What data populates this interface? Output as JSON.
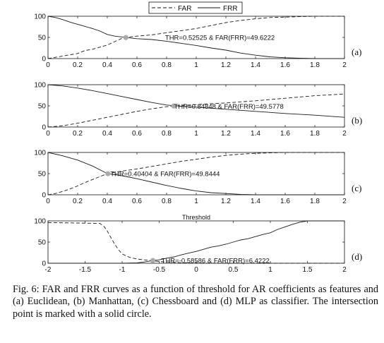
{
  "legend": {
    "far_label": "FAR",
    "frr_label": "FRR"
  },
  "colors": {
    "line": "#1a1a1a",
    "marker": "#aaaaaa",
    "background": "#ffffff"
  },
  "caption": "Fig. 6: FAR and FRR curves as a function of threshold for AR coefficients as features and (a) Euclidean, (b) Manhattan, (c) Chessboard and (d) MLP as classifier. The intersection point is marked with a solid circle.",
  "chart_data": [
    {
      "type": "line",
      "panel_label": "(a)",
      "xlabel": "",
      "xlim": [
        0,
        2
      ],
      "ylim": [
        0,
        100
      ],
      "xticks": [
        "0",
        "0.2",
        "0.4",
        "0.6",
        "0.8",
        "1",
        "1.2",
        "1.4",
        "1.6",
        "1.8",
        "2"
      ],
      "yticks": [
        "0",
        "50",
        "100"
      ],
      "annotation": "THR=0.52525  &  FAR(FRR)=49.6222",
      "intersection": {
        "x": 0.52525,
        "y": 49.6222
      },
      "series": [
        {
          "name": "FAR",
          "style": "dashed",
          "x": [
            0,
            0.05,
            0.1,
            0.15,
            0.2,
            0.25,
            0.3,
            0.35,
            0.4,
            0.45,
            0.5,
            0.55,
            0.6,
            0.7,
            0.8,
            0.9,
            1.0,
            1.1,
            1.2,
            1.3,
            1.4,
            1.5,
            1.6,
            1.7,
            1.8,
            2.0
          ],
          "y": [
            0,
            3,
            6,
            9,
            12,
            19,
            22,
            27,
            32,
            40,
            48,
            51,
            53,
            56,
            61,
            66,
            71,
            78,
            85,
            90,
            94,
            97,
            98,
            99,
            100,
            100
          ]
        },
        {
          "name": "FRR",
          "style": "solid",
          "x": [
            0,
            0.05,
            0.1,
            0.15,
            0.2,
            0.25,
            0.3,
            0.35,
            0.4,
            0.45,
            0.5,
            0.6,
            0.7,
            0.8,
            0.9,
            1.0,
            1.1,
            1.2,
            1.3,
            1.4,
            1.5,
            1.6,
            1.7,
            1.8,
            2.0
          ],
          "y": [
            100,
            97,
            92,
            86,
            81,
            76,
            71,
            65,
            57,
            53,
            51,
            47,
            45,
            41,
            36,
            31,
            25,
            20,
            13,
            8,
            4,
            2,
            1,
            0,
            0
          ]
        }
      ]
    },
    {
      "type": "line",
      "panel_label": "(b)",
      "xlabel": "",
      "xlim": [
        0,
        2
      ],
      "ylim": [
        0,
        100
      ],
      "xticks": [
        "0",
        "0.2",
        "0.4",
        "0.6",
        "0.8",
        "1",
        "1.2",
        "1.4",
        "1.6",
        "1.8",
        "2"
      ],
      "yticks": [
        "0",
        "50",
        "100"
      ],
      "annotation": "THR=0.84848  &  FAR(FRR)=49.5778",
      "intersection": {
        "x": 0.84848,
        "y": 49.5778
      },
      "series": [
        {
          "name": "FAR",
          "style": "dashed",
          "x": [
            0,
            0.1,
            0.2,
            0.3,
            0.4,
            0.5,
            0.6,
            0.7,
            0.8,
            0.9,
            1.0,
            1.2,
            1.4,
            1.6,
            1.8,
            2.0
          ],
          "y": [
            0,
            3,
            9,
            16,
            23,
            30,
            37,
            43,
            48,
            51,
            53,
            57,
            62,
            68,
            74,
            78
          ]
        },
        {
          "name": "FRR",
          "style": "solid",
          "x": [
            0,
            0.1,
            0.2,
            0.3,
            0.4,
            0.5,
            0.6,
            0.7,
            0.8,
            0.9,
            1.0,
            1.2,
            1.4,
            1.6,
            1.8,
            2.0
          ],
          "y": [
            100,
            97,
            92,
            86,
            79,
            72,
            65,
            58,
            52,
            49,
            47,
            42,
            37,
            32,
            28,
            23
          ]
        }
      ]
    },
    {
      "type": "line",
      "panel_label": "(c)",
      "xlabel": "",
      "xlim": [
        0,
        2
      ],
      "ylim": [
        0,
        100
      ],
      "xticks": [
        "0",
        "0.2",
        "0.4",
        "0.6",
        "0.8",
        "1",
        "1.2",
        "1.4",
        "1.6",
        "1.8",
        "2"
      ],
      "yticks": [
        "0",
        "50",
        "100"
      ],
      "annotation": "THR=0.40404  &  FAR(FRR)=49.8444",
      "intersection": {
        "x": 0.40404,
        "y": 49.8444
      },
      "series": [
        {
          "name": "FAR",
          "style": "dashed",
          "x": [
            0,
            0.05,
            0.1,
            0.15,
            0.2,
            0.25,
            0.3,
            0.35,
            0.4,
            0.45,
            0.5,
            0.6,
            0.7,
            0.8,
            0.9,
            1.0,
            1.1,
            1.2,
            1.3,
            1.4,
            1.5,
            1.6,
            1.7,
            1.8,
            2.0
          ],
          "y": [
            0,
            3,
            8,
            14,
            21,
            29,
            36,
            43,
            50,
            53,
            56,
            61,
            67,
            73,
            79,
            84,
            89,
            93,
            96,
            98,
            99,
            100,
            100,
            100,
            100
          ]
        },
        {
          "name": "FRR",
          "style": "solid",
          "x": [
            0,
            0.1,
            0.2,
            0.3,
            0.4,
            0.5,
            0.6,
            0.7,
            0.8,
            0.9,
            1.0,
            1.1,
            1.2,
            1.3,
            1.4,
            2.0
          ],
          "y": [
            100,
            92,
            82,
            68,
            50,
            45,
            38,
            30,
            22,
            15,
            9,
            5,
            3,
            1,
            0,
            0
          ]
        }
      ]
    },
    {
      "type": "line",
      "panel_label": "(d)",
      "xlabel": "Threshold",
      "xlim": [
        -2,
        2
      ],
      "ylim": [
        0,
        100
      ],
      "xticks": [
        "-2",
        "-1.5",
        "-1",
        "-0.5",
        "0",
        "0.5",
        "1",
        "1.5",
        "2"
      ],
      "yticks": [
        "0",
        "50",
        "100"
      ],
      "annotation": "THR=-0.58586  &  FAR(FRR)=6.4222",
      "intersection": {
        "x": -0.58586,
        "y": 6.4222
      },
      "series": [
        {
          "name": "FAR",
          "style": "dashed",
          "x": [
            -2.0,
            -1.6,
            -1.3,
            -1.25,
            -1.2,
            -1.15,
            -1.1,
            -1.05,
            -1.0,
            -0.9,
            -0.8,
            -0.7,
            -0.6,
            -0.5,
            -0.4,
            -0.2,
            0.0,
            0.2,
            0.5,
            1.0,
            1.5,
            2.0
          ],
          "y": [
            96,
            95,
            94,
            88,
            76,
            60,
            45,
            32,
            22,
            14,
            10,
            8,
            6,
            4,
            3,
            1,
            0,
            0,
            0,
            0,
            0,
            0
          ]
        },
        {
          "name": "FRR",
          "style": "solid",
          "x": [
            -2.0,
            -1.5,
            -1.0,
            -0.8,
            -0.7,
            -0.6,
            -0.5,
            -0.4,
            -0.3,
            -0.2,
            -0.1,
            0.0,
            0.1,
            0.2,
            0.3,
            0.4,
            0.5,
            0.6,
            0.7,
            0.8,
            0.9,
            1.0,
            1.1,
            1.2,
            1.3,
            1.4,
            1.5,
            2.0
          ],
          "y": [
            0,
            0,
            0,
            1,
            3,
            6,
            8,
            12,
            15,
            20,
            24,
            28,
            33,
            38,
            41,
            45,
            50,
            55,
            58,
            63,
            68,
            72,
            80,
            86,
            92,
            97,
            100,
            100
          ]
        }
      ]
    }
  ]
}
